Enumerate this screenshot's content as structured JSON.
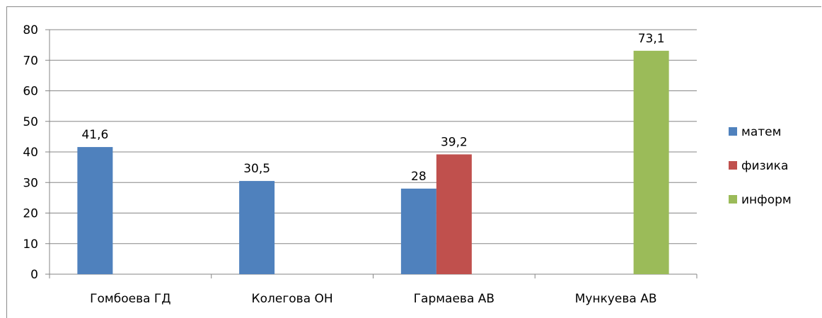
{
  "chart_data": {
    "type": "bar",
    "categories": [
      "Гомбоева ГД",
      "Колегова ОН",
      "Гармаева АВ",
      "Мункуева АВ"
    ],
    "series": [
      {
        "name": "матем",
        "color": "#4f81bd",
        "values": [
          41.6,
          30.5,
          28,
          null
        ],
        "labels": [
          "41,6",
          "30,5",
          "28",
          null
        ]
      },
      {
        "name": "физика",
        "color": "#c0504d",
        "values": [
          null,
          null,
          39.2,
          null
        ],
        "labels": [
          null,
          null,
          "39,2",
          null
        ]
      },
      {
        "name": "информ",
        "color": "#9bbb59",
        "values": [
          null,
          null,
          null,
          73.1
        ],
        "labels": [
          null,
          null,
          null,
          "73,1"
        ]
      }
    ],
    "yticks": [
      "0",
      "10",
      "20",
      "30",
      "40",
      "50",
      "60",
      "70",
      "80"
    ],
    "ylim": [
      0,
      80
    ],
    "grid": true,
    "legend": "right"
  }
}
